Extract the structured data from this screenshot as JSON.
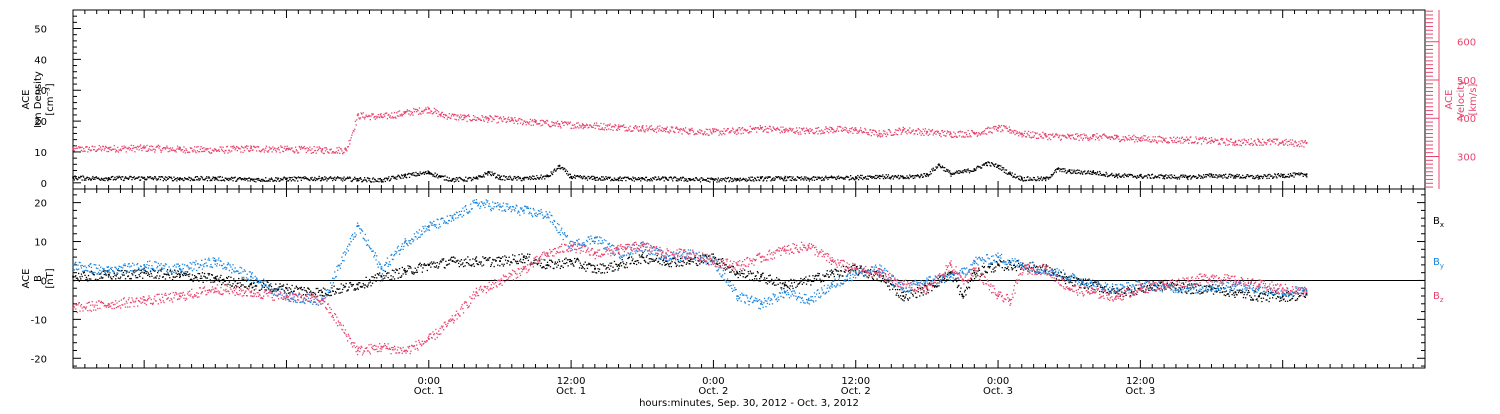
{
  "chart_data": [
    {
      "type": "scatter",
      "xlabel": "hours:minutes, Sep. 30, 2012 - Oct. 3, 2012",
      "xlim": [
        -6,
        108
      ],
      "x_ticks": [
        {
          "x": 24,
          "time": "0:00",
          "date": "Oct. 1"
        },
        {
          "x": 36,
          "time": "12:00",
          "date": "Oct. 1"
        },
        {
          "x": 48,
          "time": "0:00",
          "date": "Oct. 2"
        },
        {
          "x": 60,
          "time": "12:00",
          "date": "Oct. 2"
        },
        {
          "x": 72,
          "time": "0:00",
          "date": "Oct. 3"
        },
        {
          "x": 84,
          "time": "12:00",
          "date": "Oct. 3"
        }
      ],
      "left_axis": {
        "label_lines": [
          "ACE",
          "Ion Density",
          "[cm⁻³]"
        ],
        "ylim": [
          -2,
          56
        ],
        "ticks": [
          0,
          10,
          20,
          30,
          40,
          50
        ]
      },
      "right_axis": {
        "label_lines": [
          "ACE",
          "Velocity",
          "[km/s]"
        ],
        "ylim": [
          215,
          683
        ],
        "ticks": [
          300,
          400,
          500,
          600
        ],
        "color": "#e8456e"
      },
      "series": [
        {
          "name": "Ion Density",
          "axis": "left",
          "color": "#000000",
          "points": [
            [
              -6,
              1.8
            ],
            [
              -3,
              1.6
            ],
            [
              0,
              1.7
            ],
            [
              3,
              1.5
            ],
            [
              6,
              1.6
            ],
            [
              9,
              1.2
            ],
            [
              12,
              1.4
            ],
            [
              15,
              1.6
            ],
            [
              18,
              1.3
            ],
            [
              20,
              1.0
            ],
            [
              22,
              2.5
            ],
            [
              24,
              3.5
            ],
            [
              25,
              2.0
            ],
            [
              26,
              1.2
            ],
            [
              28,
              1.5
            ],
            [
              29,
              3.5
            ],
            [
              30,
              1.8
            ],
            [
              32,
              1.5
            ],
            [
              34,
              2.2
            ],
            [
              35,
              5.5
            ],
            [
              36,
              2.0
            ],
            [
              38,
              1.6
            ],
            [
              40,
              1.5
            ],
            [
              42,
              1.4
            ],
            [
              44,
              1.5
            ],
            [
              46,
              1.3
            ],
            [
              48,
              1.1
            ],
            [
              50,
              1.3
            ],
            [
              52,
              1.5
            ],
            [
              54,
              1.6
            ],
            [
              56,
              1.4
            ],
            [
              58,
              1.8
            ],
            [
              60,
              1.9
            ],
            [
              62,
              2.3
            ],
            [
              64,
              1.8
            ],
            [
              66,
              2.8
            ],
            [
              67,
              6.0
            ],
            [
              68,
              3.0
            ],
            [
              70,
              4.5
            ],
            [
              71,
              6.5
            ],
            [
              72,
              5.5
            ],
            [
              73,
              3.0
            ],
            [
              74,
              1.5
            ],
            [
              76,
              1.4
            ],
            [
              77,
              4.5
            ],
            [
              78,
              3.8
            ],
            [
              80,
              3.5
            ],
            [
              82,
              2.5
            ],
            [
              84,
              2.3
            ],
            [
              86,
              2.2
            ],
            [
              88,
              2.0
            ],
            [
              90,
              2.5
            ],
            [
              92,
              2.3
            ],
            [
              94,
              2.0
            ],
            [
              96,
              2.6
            ],
            [
              98,
              2.8
            ]
          ]
        },
        {
          "name": "Velocity",
          "axis": "right",
          "color": "#e8456e",
          "points": [
            [
              -6,
              320
            ],
            [
              -3,
              322
            ],
            [
              0,
              323
            ],
            [
              3,
              320
            ],
            [
              6,
              318
            ],
            [
              9,
              322
            ],
            [
              12,
              320
            ],
            [
              15,
              318
            ],
            [
              17,
              318
            ],
            [
              18,
              408
            ],
            [
              20,
              405
            ],
            [
              22,
              415
            ],
            [
              24,
              425
            ],
            [
              25,
              410
            ],
            [
              27,
              402
            ],
            [
              29,
              400
            ],
            [
              31,
              395
            ],
            [
              33,
              390
            ],
            [
              35,
              385
            ],
            [
              37,
              383
            ],
            [
              40,
              378
            ],
            [
              42,
              375
            ],
            [
              44,
              372
            ],
            [
              46,
              368
            ],
            [
              48,
              365
            ],
            [
              50,
              368
            ],
            [
              52,
              375
            ],
            [
              54,
              370
            ],
            [
              56,
              368
            ],
            [
              58,
              372
            ],
            [
              60,
              370
            ],
            [
              62,
              360
            ],
            [
              64,
              370
            ],
            [
              66,
              365
            ],
            [
              68,
              360
            ],
            [
              70,
              362
            ],
            [
              72,
              375
            ],
            [
              73,
              370
            ],
            [
              74,
              360
            ],
            [
              76,
              355
            ],
            [
              78,
              352
            ],
            [
              80,
              353
            ],
            [
              82,
              350
            ],
            [
              84,
              348
            ],
            [
              86,
              345
            ],
            [
              88,
              345
            ],
            [
              90,
              342
            ],
            [
              92,
              338
            ],
            [
              94,
              340
            ],
            [
              96,
              338
            ],
            [
              98,
              335
            ]
          ]
        }
      ]
    },
    {
      "type": "scatter",
      "xlabel": "hours:minutes, Sep. 30, 2012 - Oct. 3, 2012",
      "xlim": [
        -6,
        108
      ],
      "left_axis": {
        "label_lines": [
          "ACE",
          "B",
          "[nT]"
        ],
        "ylim": [
          -22.5,
          23.5
        ],
        "ticks": [
          -20,
          -10,
          0,
          10,
          20
        ]
      },
      "zero_line": 0,
      "series": [
        {
          "name": "Bx",
          "label_main": "B",
          "label_sub": "x",
          "color": "#000000",
          "points": [
            [
              -6,
              1
            ],
            [
              -3,
              1.5
            ],
            [
              0,
              2
            ],
            [
              3,
              1.5
            ],
            [
              6,
              0.5
            ],
            [
              9,
              -1
            ],
            [
              12,
              -2
            ],
            [
              15,
              -3
            ],
            [
              18,
              -1
            ],
            [
              20,
              1
            ],
            [
              22,
              2.5
            ],
            [
              24,
              4
            ],
            [
              26,
              5
            ],
            [
              28,
              5
            ],
            [
              30,
              5
            ],
            [
              32,
              6
            ],
            [
              34,
              4
            ],
            [
              36,
              5
            ],
            [
              38,
              3
            ],
            [
              40,
              4
            ],
            [
              42,
              6
            ],
            [
              44,
              5
            ],
            [
              46,
              5
            ],
            [
              48,
              6
            ],
            [
              50,
              2
            ],
            [
              52,
              1
            ],
            [
              54,
              -1
            ],
            [
              56,
              0
            ],
            [
              58,
              2
            ],
            [
              60,
              3
            ],
            [
              62,
              1
            ],
            [
              64,
              -4
            ],
            [
              66,
              -2
            ],
            [
              68,
              2
            ],
            [
              69,
              -4
            ],
            [
              70,
              2
            ],
            [
              72,
              4
            ],
            [
              74,
              4
            ],
            [
              76,
              3
            ],
            [
              78,
              0
            ],
            [
              80,
              -1
            ],
            [
              82,
              -3
            ],
            [
              84,
              -2
            ],
            [
              86,
              -1
            ],
            [
              88,
              -2
            ],
            [
              90,
              -2
            ],
            [
              92,
              -3
            ],
            [
              94,
              -4
            ],
            [
              96,
              -4
            ],
            [
              98,
              -3.5
            ]
          ]
        },
        {
          "name": "By",
          "label_main": "B",
          "label_sub": "y",
          "color": "#1b86de",
          "points": [
            [
              -6,
              4
            ],
            [
              -3,
              2.5
            ],
            [
              0,
              4
            ],
            [
              3,
              3
            ],
            [
              6,
              5
            ],
            [
              9,
              1
            ],
            [
              12,
              -4
            ],
            [
              15,
              -5
            ],
            [
              18,
              14
            ],
            [
              20,
              3
            ],
            [
              22,
              10
            ],
            [
              24,
              14
            ],
            [
              26,
              16
            ],
            [
              28,
              20
            ],
            [
              30,
              19
            ],
            [
              32,
              18
            ],
            [
              34,
              17
            ],
            [
              36,
              9
            ],
            [
              38,
              11
            ],
            [
              40,
              7
            ],
            [
              42,
              9
            ],
            [
              44,
              6
            ],
            [
              46,
              7
            ],
            [
              48,
              5
            ],
            [
              50,
              -4
            ],
            [
              52,
              -6
            ],
            [
              54,
              -3
            ],
            [
              56,
              -5
            ],
            [
              58,
              -1
            ],
            [
              60,
              2
            ],
            [
              62,
              3
            ],
            [
              64,
              -2
            ],
            [
              66,
              0
            ],
            [
              68,
              1
            ],
            [
              69,
              2
            ],
            [
              70,
              5
            ],
            [
              72,
              6
            ],
            [
              74,
              4
            ],
            [
              76,
              3
            ],
            [
              78,
              1
            ],
            [
              80,
              -1
            ],
            [
              82,
              -2
            ],
            [
              84,
              -1
            ],
            [
              86,
              -1.5
            ],
            [
              88,
              -2
            ],
            [
              90,
              -1.5
            ],
            [
              92,
              -1
            ],
            [
              94,
              -2
            ],
            [
              96,
              -3
            ],
            [
              98,
              -2.5
            ]
          ]
        },
        {
          "name": "Bz",
          "label_main": "B",
          "label_sub": "z",
          "color": "#e8456e",
          "points": [
            [
              -6,
              -7
            ],
            [
              -3,
              -6
            ],
            [
              0,
              -5
            ],
            [
              3,
              -4
            ],
            [
              6,
              -2
            ],
            [
              9,
              -3
            ],
            [
              12,
              -4
            ],
            [
              15,
              -5
            ],
            [
              18,
              -18
            ],
            [
              20,
              -17
            ],
            [
              22,
              -18
            ],
            [
              24,
              -15
            ],
            [
              26,
              -10
            ],
            [
              28,
              -3
            ],
            [
              30,
              0
            ],
            [
              32,
              3
            ],
            [
              34,
              7
            ],
            [
              36,
              9
            ],
            [
              38,
              7
            ],
            [
              40,
              8
            ],
            [
              42,
              9
            ],
            [
              44,
              7
            ],
            [
              46,
              7
            ],
            [
              48,
              5
            ],
            [
              50,
              4
            ],
            [
              52,
              6
            ],
            [
              54,
              8
            ],
            [
              56,
              9
            ],
            [
              58,
              5
            ],
            [
              60,
              3
            ],
            [
              62,
              2
            ],
            [
              64,
              -1
            ],
            [
              66,
              -2
            ],
            [
              68,
              4
            ],
            [
              69,
              0
            ],
            [
              70,
              3
            ],
            [
              72,
              -4
            ],
            [
              73,
              -5
            ],
            [
              74,
              3
            ],
            [
              76,
              3
            ],
            [
              78,
              -2
            ],
            [
              80,
              -3
            ],
            [
              82,
              -4
            ],
            [
              84,
              -2
            ],
            [
              86,
              -1
            ],
            [
              88,
              0
            ],
            [
              90,
              1
            ],
            [
              92,
              0
            ],
            [
              94,
              -1
            ],
            [
              96,
              -2
            ],
            [
              98,
              -3
            ]
          ]
        }
      ]
    }
  ]
}
